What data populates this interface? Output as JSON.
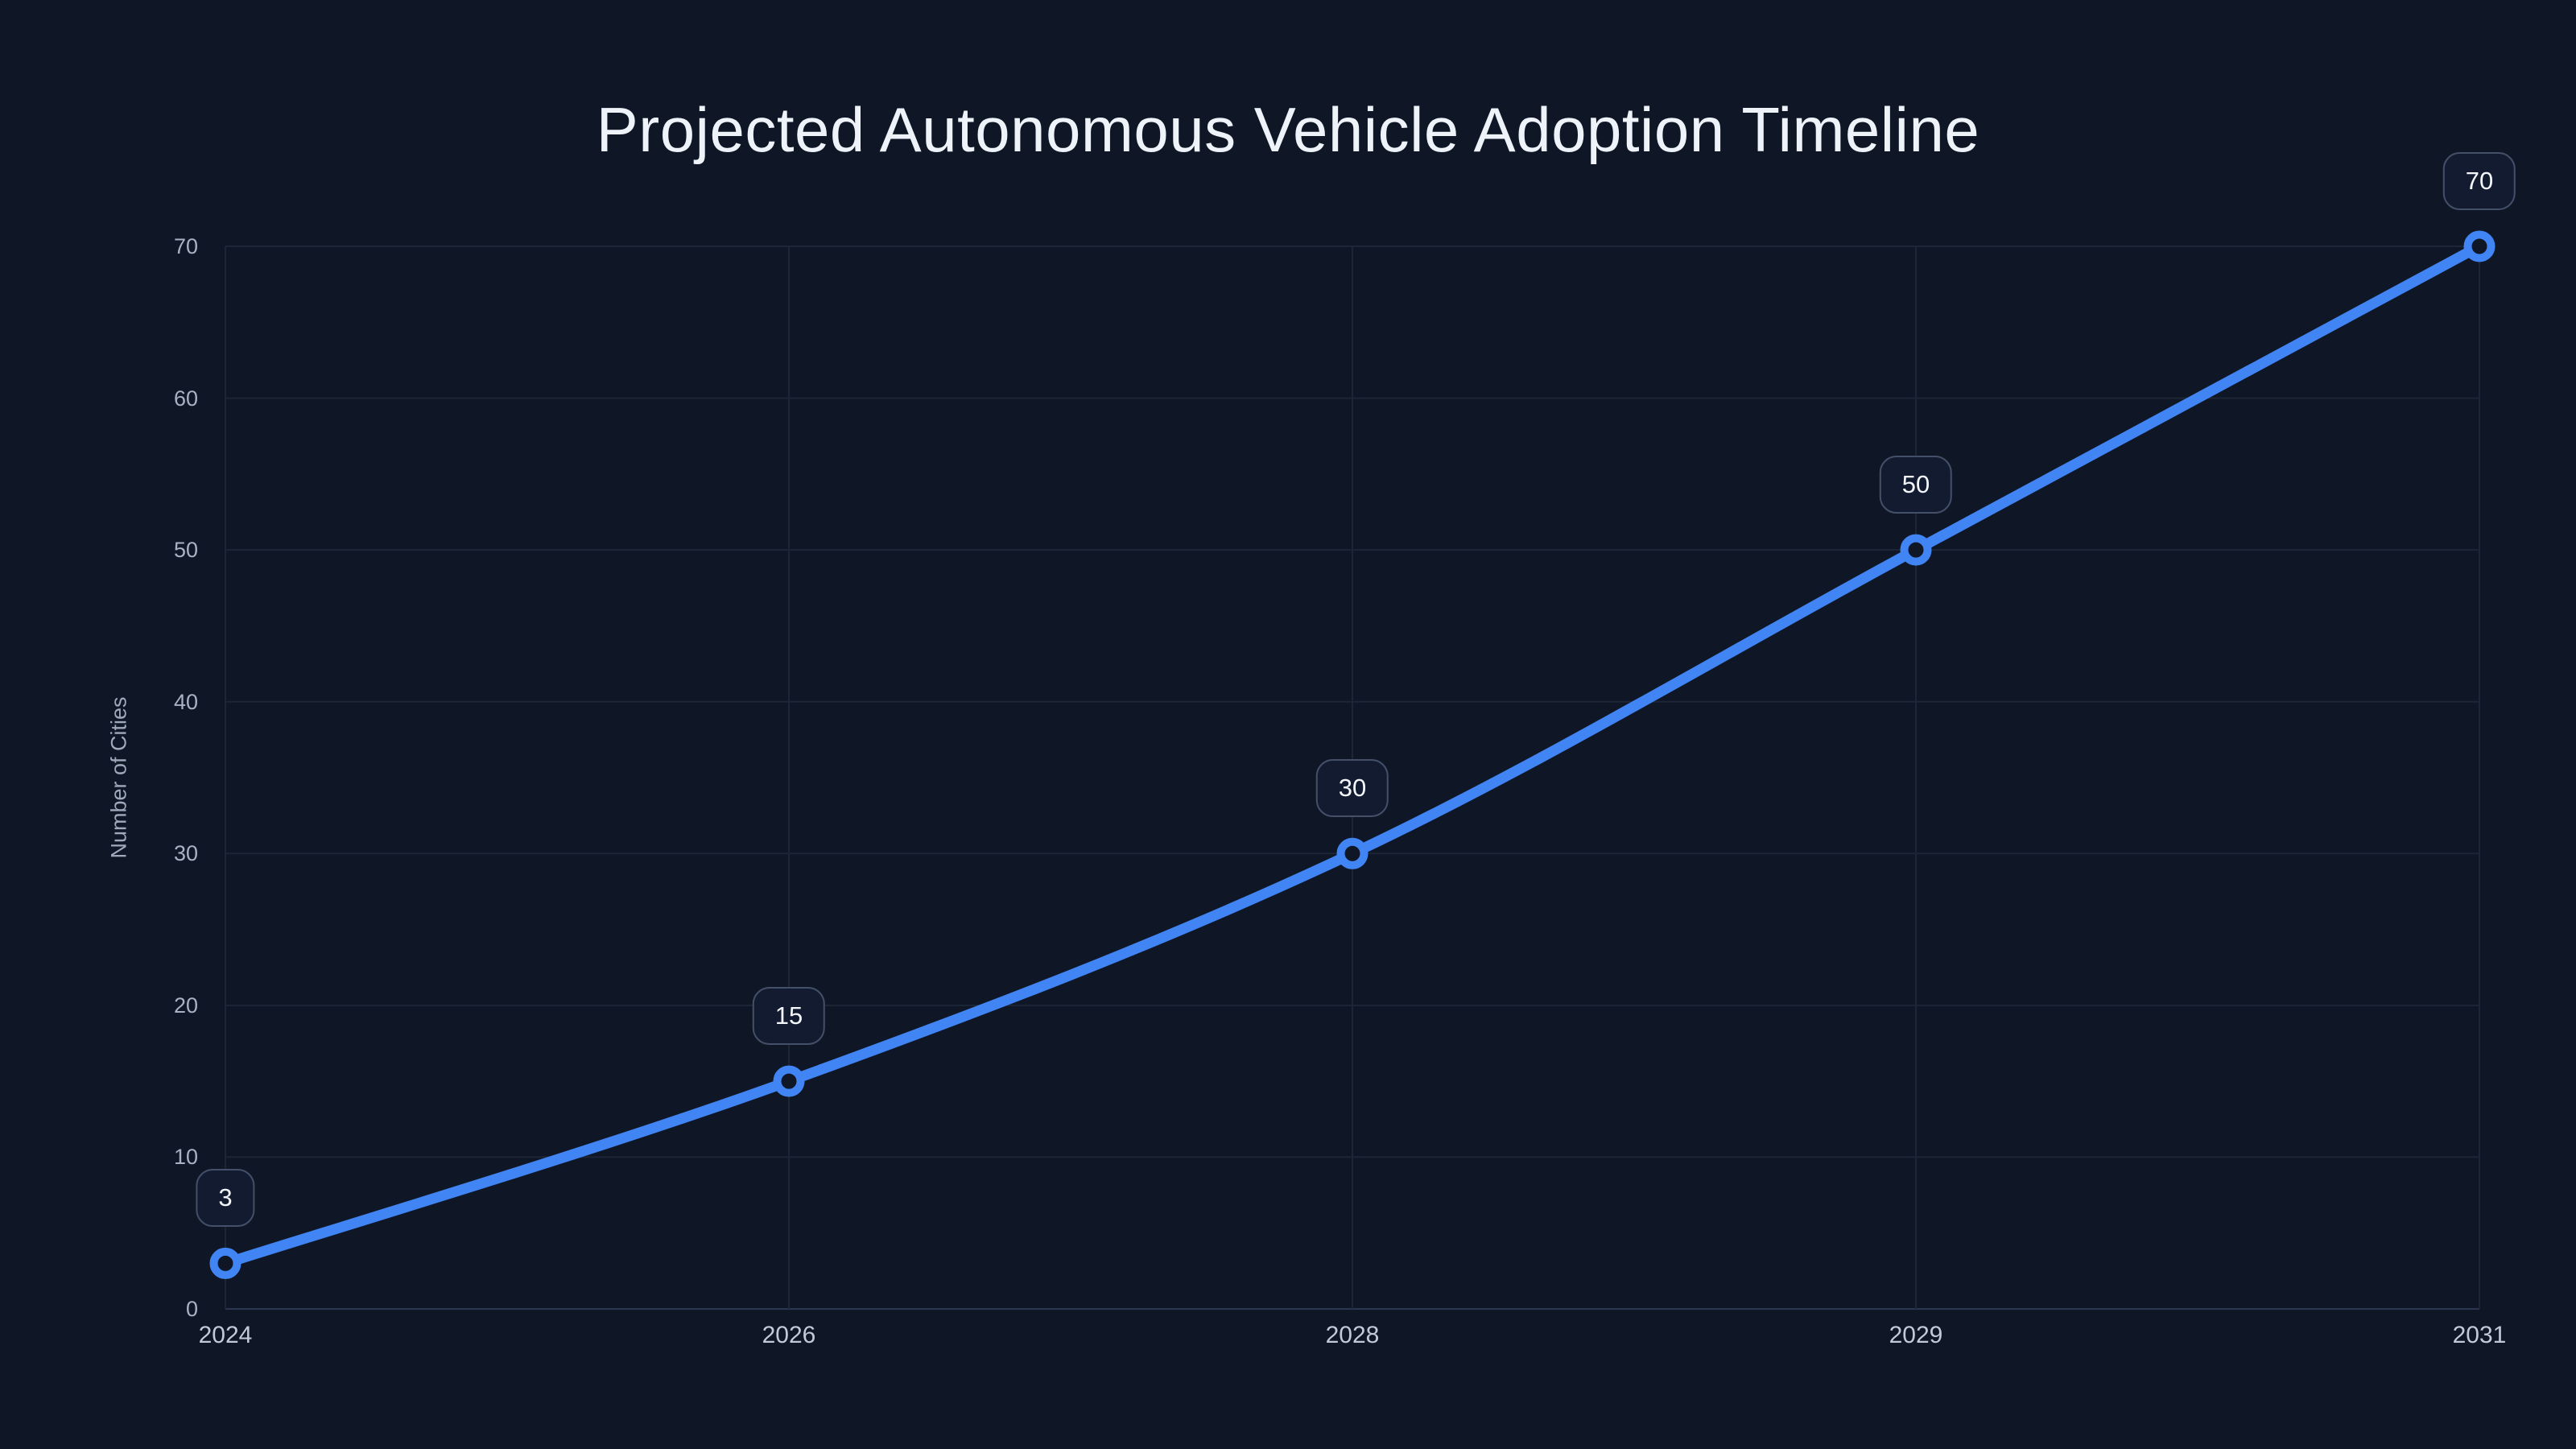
{
  "page": {
    "background_color": "#0f1726"
  },
  "chart_data": {
    "type": "line",
    "title": "Projected Autonomous Vehicle Adoption Timeline",
    "xlabel": "",
    "ylabel": "Number of Cities",
    "categories": [
      "2024",
      "2026",
      "2028",
      "2029",
      "2031"
    ],
    "series": [
      {
        "name": "Number of Cities",
        "values": [
          3,
          15,
          30,
          50,
          70
        ]
      }
    ],
    "point_labels": [
      "3",
      "15",
      "30",
      "50",
      "70"
    ],
    "ylim": [
      0,
      70
    ],
    "yticks": [
      0,
      10,
      20,
      30,
      40,
      50,
      60,
      70
    ],
    "grid": "on",
    "legend": "none",
    "line_color": "#4184f4",
    "marker_ring_color": "#4184f4",
    "marker_fill_color": "#0f1726",
    "gridline_color": "#1d2637",
    "zeroline_color": "#2b3650",
    "smoothed": true
  }
}
